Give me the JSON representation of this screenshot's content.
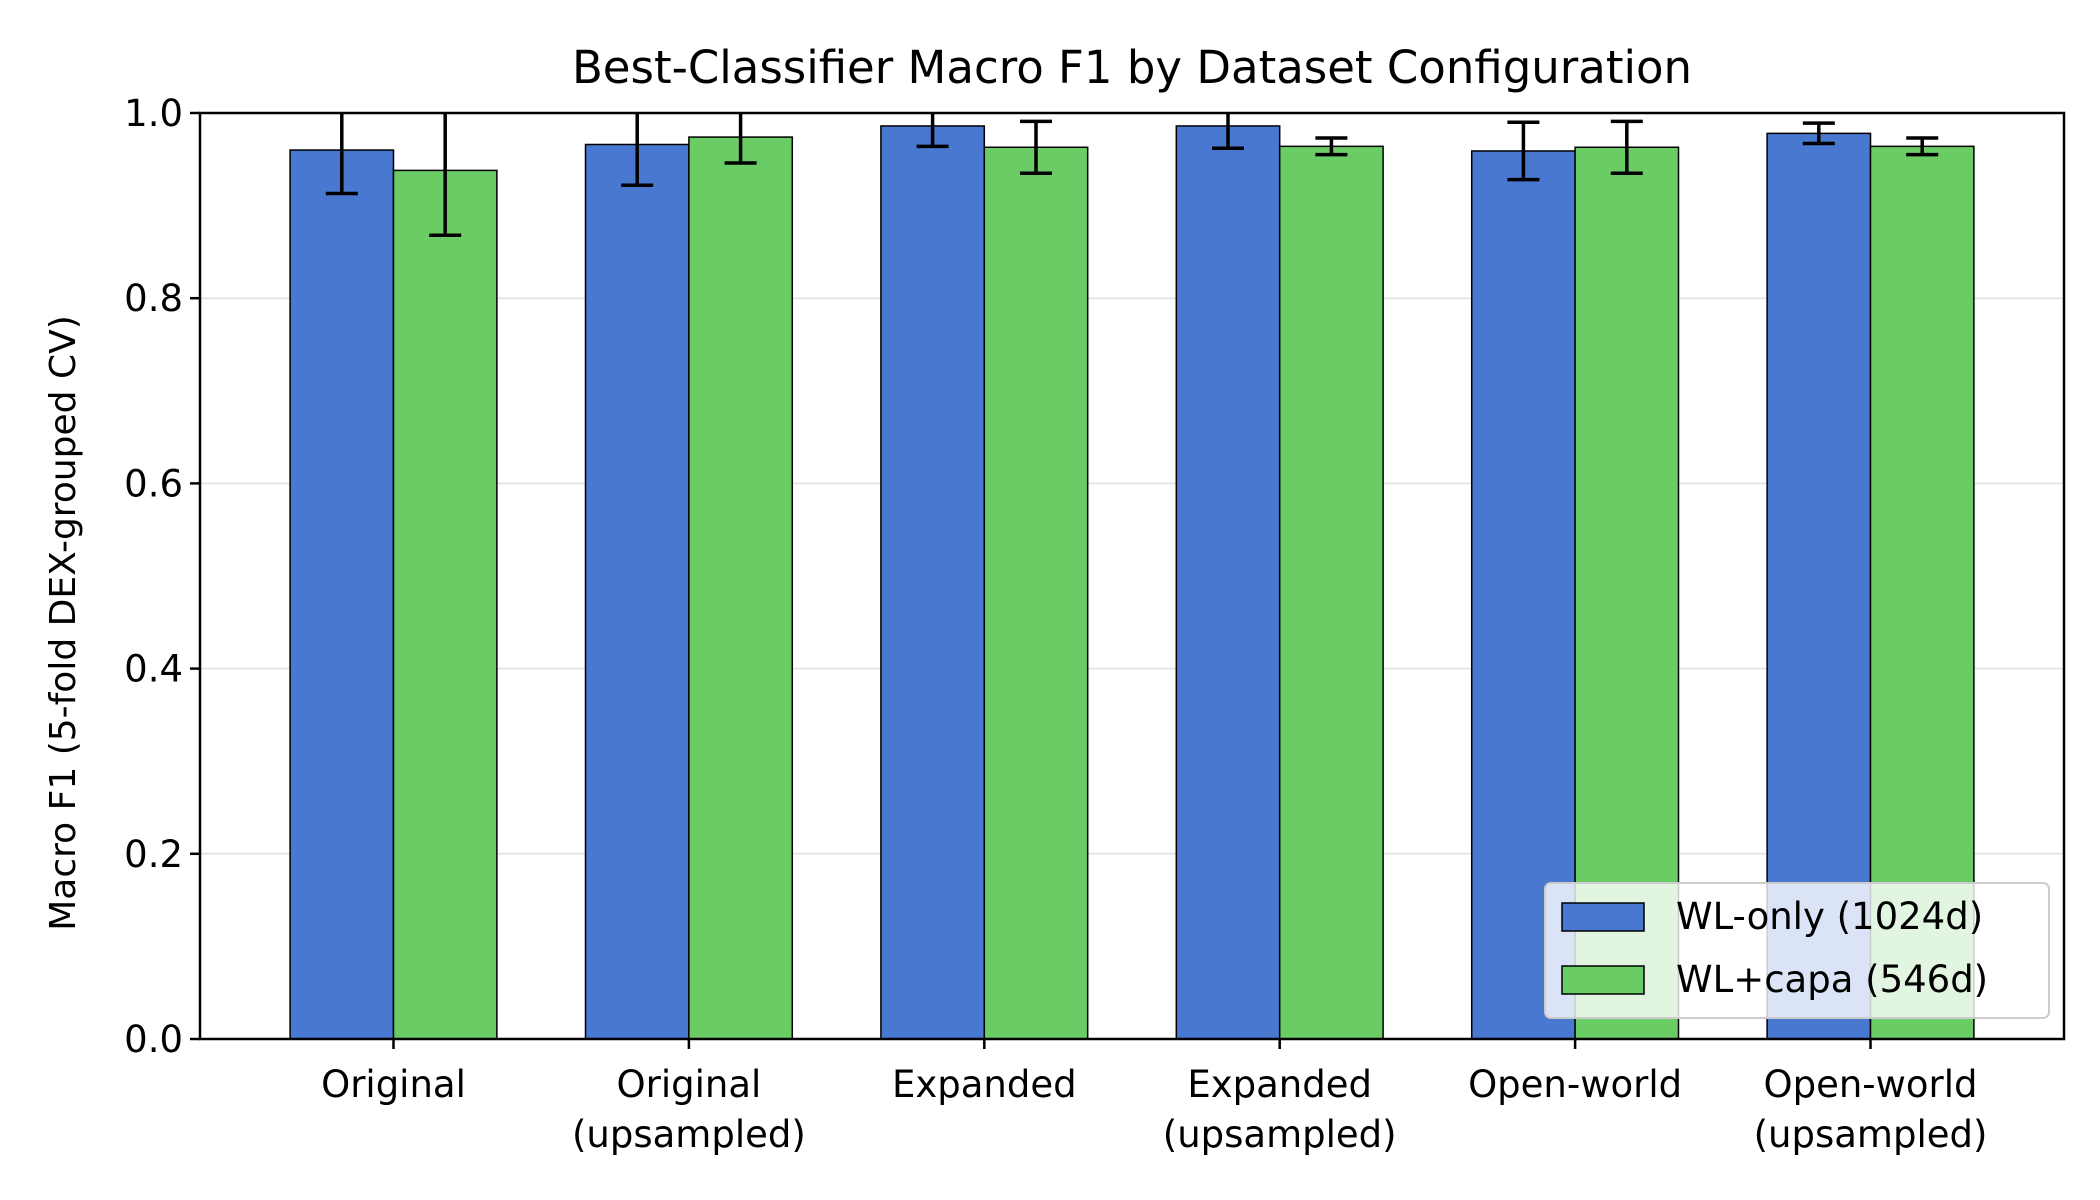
{
  "chart_data": {
    "type": "bar",
    "title": "Best-Classifier Macro F1 by Dataset Configuration",
    "xlabel": "",
    "ylabel": "Macro F1 (5-fold DEX-grouped CV)",
    "ylim": [
      0.0,
      1.0
    ],
    "yticks": [
      "0.0",
      "0.2",
      "0.4",
      "0.6",
      "0.8",
      "1.0"
    ],
    "grid": "y-axis, light gray",
    "legend_position": "bottom-right",
    "categories": [
      [
        "Original"
      ],
      [
        "Original",
        "(upsampled)"
      ],
      [
        "Expanded"
      ],
      [
        "Expanded",
        "(upsampled)"
      ],
      [
        "Open-world"
      ],
      [
        "Open-world",
        "(upsampled)"
      ]
    ],
    "series": [
      {
        "name": "WL-only (1024d)",
        "color": "#4878cf",
        "values": [
          0.96,
          0.966,
          0.986,
          0.986,
          0.959,
          0.978
        ],
        "errors": [
          0.047,
          0.044,
          0.022,
          0.024,
          0.031,
          0.011
        ]
      },
      {
        "name": "WL+capa (546d)",
        "color": "#6acc65",
        "values": [
          0.938,
          0.974,
          0.963,
          0.964,
          0.963,
          0.964
        ],
        "errors": [
          0.07,
          0.028,
          0.028,
          0.009,
          0.028,
          0.009
        ]
      }
    ]
  }
}
